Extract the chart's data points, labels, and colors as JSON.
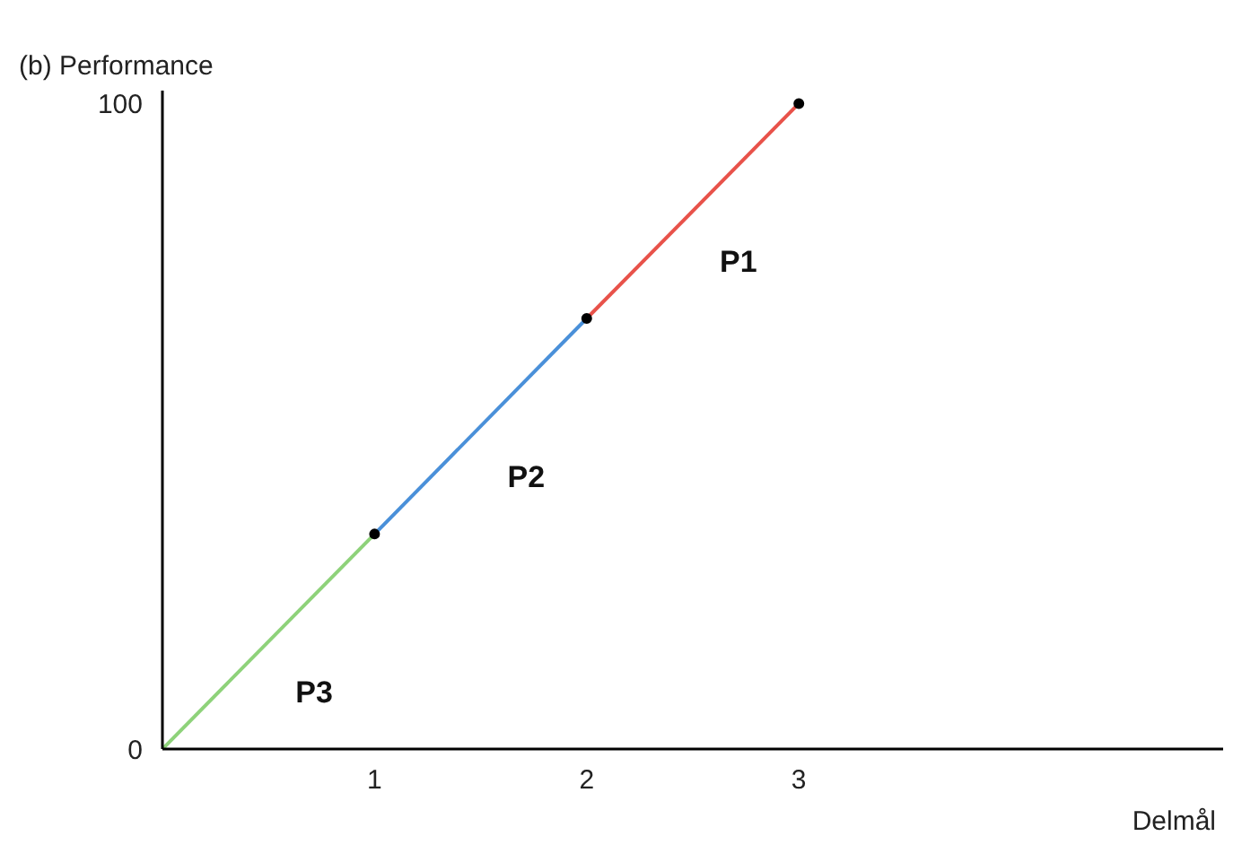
{
  "chart_data": {
    "type": "line",
    "ylabel": "(b) Performance",
    "xlabel": "Delmål",
    "xlim": [
      0,
      5
    ],
    "ylim": [
      0,
      102
    ],
    "xticks": [
      1,
      2,
      3
    ],
    "yticks": [
      0,
      100
    ],
    "grid": false,
    "legend": false,
    "marker": "none",
    "line_style": "solid",
    "series": [
      {
        "name": "P3",
        "color": "#8ed27a",
        "x": [
          0,
          1
        ],
        "values": [
          0,
          33.3
        ]
      },
      {
        "name": "P2",
        "color": "#4a90d9",
        "x": [
          1,
          2
        ],
        "values": [
          33.3,
          66.7
        ]
      },
      {
        "name": "P1",
        "color": "#e8524a",
        "x": [
          2,
          3
        ],
        "values": [
          66.7,
          100
        ]
      },
      {
        "type": "scatter",
        "color": "#000000",
        "marker": "circle",
        "x": [
          1,
          2,
          3
        ],
        "values": [
          33.3,
          66.7,
          100
        ]
      }
    ]
  }
}
